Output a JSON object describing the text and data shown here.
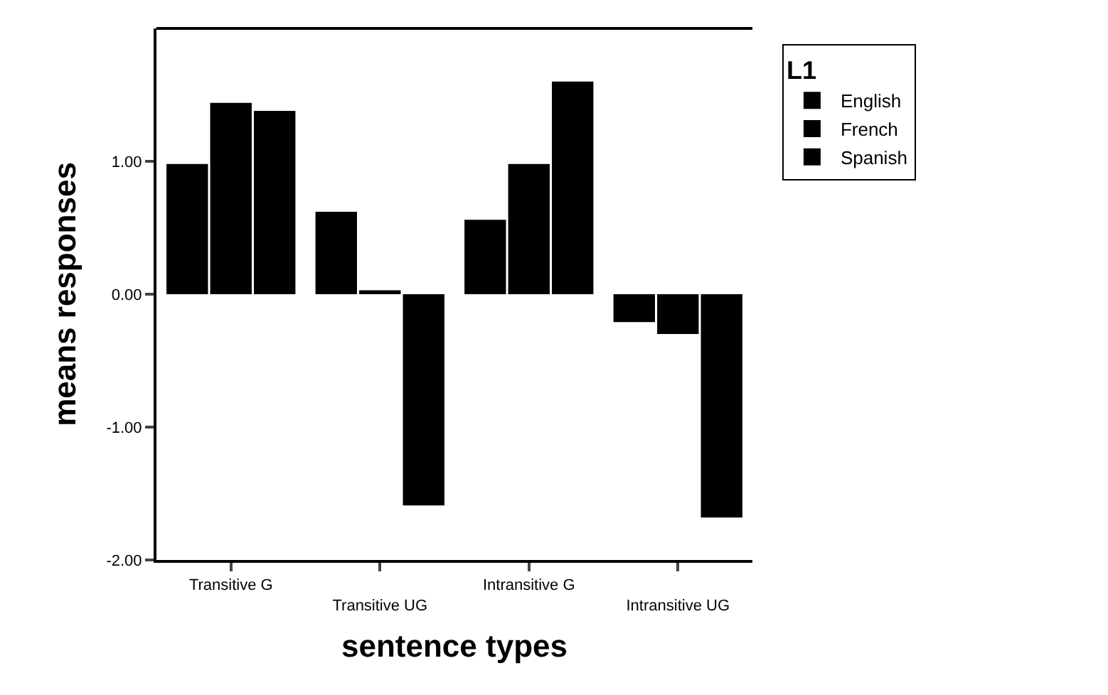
{
  "chart_data": {
    "type": "bar",
    "xlabel": "sentence types",
    "ylabel": "means responses",
    "legend_title": "L1",
    "categories": [
      "Transitive G",
      "Transitive UG",
      "Intransitive G",
      "Intransitive UG"
    ],
    "series": [
      {
        "name": "English",
        "color": "#000000",
        "values": [
          0.98,
          0.62,
          0.56,
          -0.21
        ]
      },
      {
        "name": "French",
        "color": "#000000",
        "values": [
          1.44,
          0.03,
          0.98,
          -0.3
        ]
      },
      {
        "name": "Spanish",
        "color": "#000000",
        "values": [
          1.38,
          -1.59,
          1.6,
          -1.68
        ]
      }
    ],
    "ylim": [
      -2,
      2
    ],
    "yticks": [
      {
        "value": -2,
        "label": "-2.00"
      },
      {
        "value": -1,
        "label": "-1.00"
      },
      {
        "value": 0,
        "label": "0.00"
      },
      {
        "value": 1,
        "label": "1.00"
      }
    ],
    "legend": "top right"
  }
}
